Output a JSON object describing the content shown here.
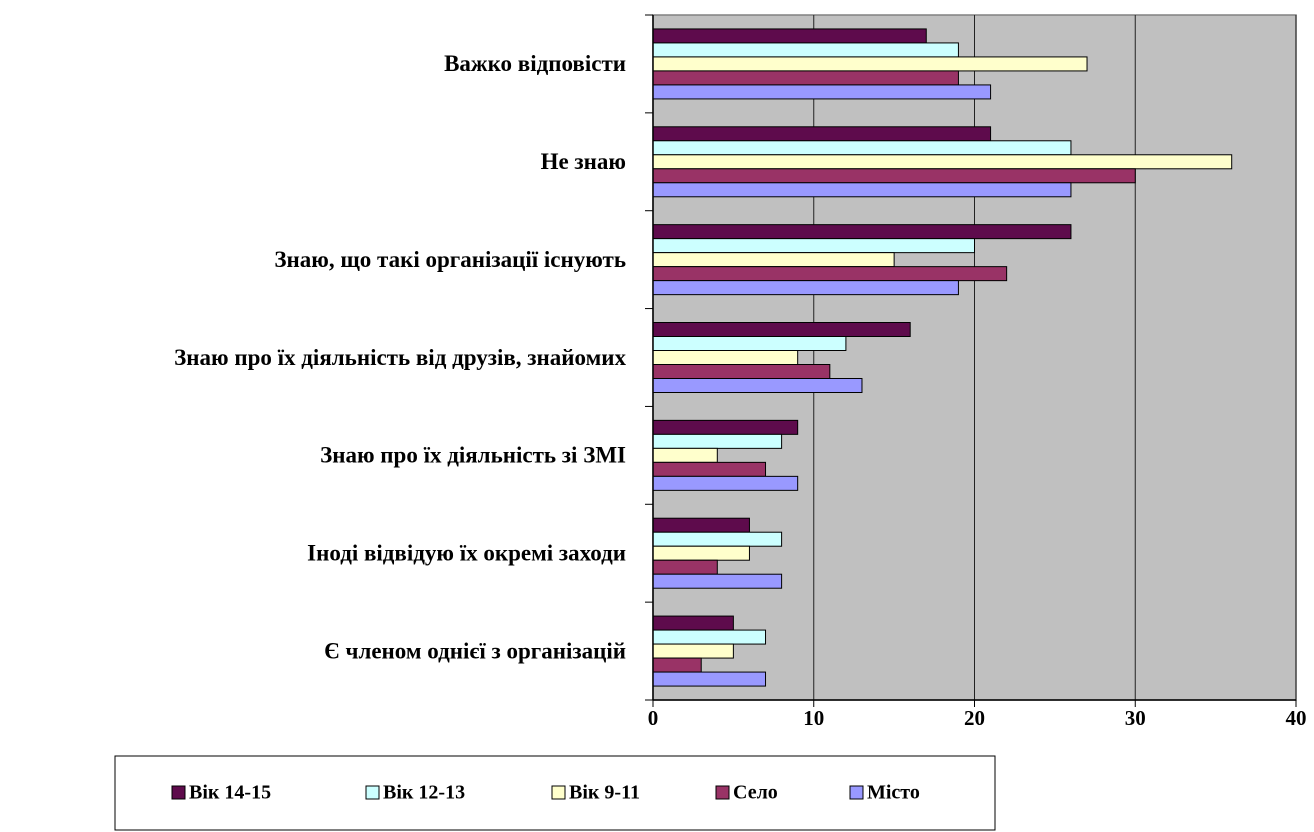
{
  "chart_data": {
    "type": "hbar",
    "categories": [
      "Важко відповісти",
      "Не знаю",
      "Знаю, що такі організації існують",
      "Знаю про їх діяльність від друзів, знайомих",
      "Знаю про їх діяльність зі ЗМІ",
      "Іноді відвідую їх окремі заходи",
      "Є членом однієї з організацій"
    ],
    "series": [
      {
        "name": "Вік 14-15",
        "color": "#5e0b4c",
        "values": [
          17,
          21,
          26,
          16,
          9,
          6,
          5
        ]
      },
      {
        "name": "Вік 12-13",
        "color": "#ccffff",
        "values": [
          19,
          26,
          20,
          12,
          8,
          8,
          7
        ]
      },
      {
        "name": "Вік 9-11",
        "color": "#ffffcc",
        "values": [
          27,
          36,
          15,
          9,
          4,
          6,
          5
        ]
      },
      {
        "name": "Село",
        "color": "#993366",
        "values": [
          19,
          30,
          22,
          11,
          7,
          4,
          3
        ]
      },
      {
        "name": "Місто",
        "color": "#9999ff",
        "values": [
          21,
          26,
          19,
          13,
          9,
          8,
          7
        ]
      }
    ],
    "xlim": [
      0,
      40
    ],
    "xticks": [
      0,
      10,
      20,
      30,
      40
    ],
    "grid": true,
    "legend": "bottom"
  }
}
